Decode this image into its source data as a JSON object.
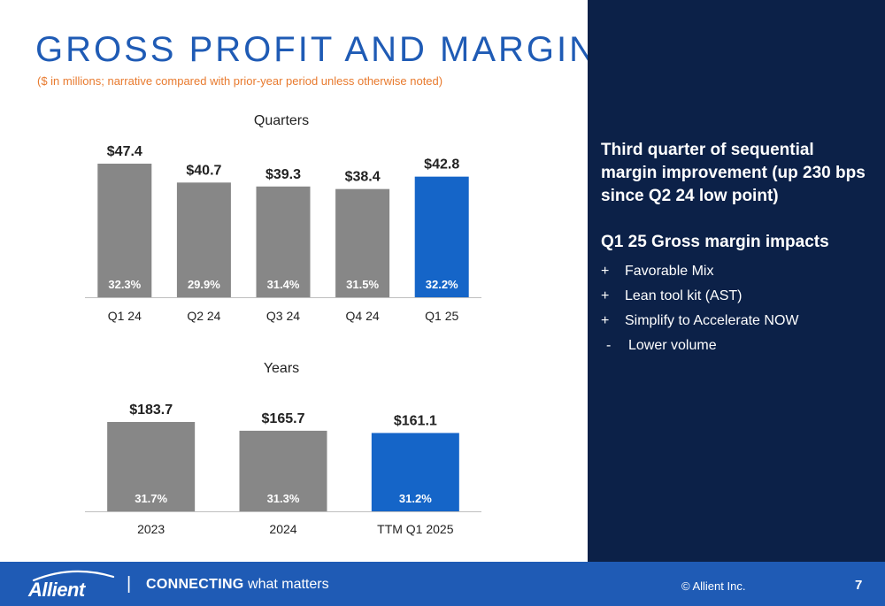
{
  "slide": {
    "title": "GROSS PROFIT AND MARGIN",
    "subtitle": "($ in millions; narrative compared with prior-year period unless otherwise noted)"
  },
  "colors": {
    "bar_gray": "#878787",
    "bar_highlight": "#1565c8",
    "title_blue": "#1f5bb5",
    "subtitle_orange": "#e87a2e",
    "panel_navy": "#0c2148",
    "footer_blue": "#1f5bb5",
    "text_dark": "#222222"
  },
  "chart_data": [
    {
      "type": "bar",
      "title": "Quarters",
      "categories": [
        "Q1 24",
        "Q2 24",
        "Q3 24",
        "Q4 24",
        "Q1 25"
      ],
      "values": [
        47.4,
        40.7,
        39.3,
        38.4,
        42.8
      ],
      "value_labels": [
        "$47.4",
        "$40.7",
        "$39.3",
        "$38.4",
        "$42.8"
      ],
      "margin_labels": [
        "32.3%",
        "29.9%",
        "31.4%",
        "31.5%",
        "32.2%"
      ],
      "margins": [
        32.3,
        29.9,
        31.4,
        31.5,
        32.2
      ],
      "highlight_index": 4,
      "ylim": [
        0,
        47.4
      ],
      "grid": false
    },
    {
      "type": "bar",
      "title": "Years",
      "categories": [
        "2023",
        "2024",
        "TTM Q1 2025"
      ],
      "values": [
        183.7,
        165.7,
        161.1
      ],
      "value_labels": [
        "$183.7",
        "$165.7",
        "$161.1"
      ],
      "margin_labels": [
        "31.7%",
        "31.3%",
        "31.2%"
      ],
      "margins": [
        31.7,
        31.3,
        31.2
      ],
      "highlight_index": 2,
      "ylim": [
        0,
        183.7
      ],
      "grid": false
    }
  ],
  "panel": {
    "heading1": "Third quarter of sequential margin improvement (up 230 bps since Q2 24 low point)",
    "heading2": "Q1 25 Gross margin impacts",
    "bullets": [
      {
        "sign": "+",
        "text": "Favorable Mix"
      },
      {
        "sign": "+",
        "text": "Lean tool kit (AST)"
      },
      {
        "sign": "+",
        "text": "Simplify to Accelerate NOW"
      },
      {
        "sign": "-",
        "text": "Lower volume"
      }
    ]
  },
  "footer": {
    "logo_text": "Allient",
    "divider": "|",
    "tagline_strong": "CONNECTING",
    "tagline_rest": " what matters",
    "copyright": "© Allient Inc.",
    "page_number": "7"
  }
}
